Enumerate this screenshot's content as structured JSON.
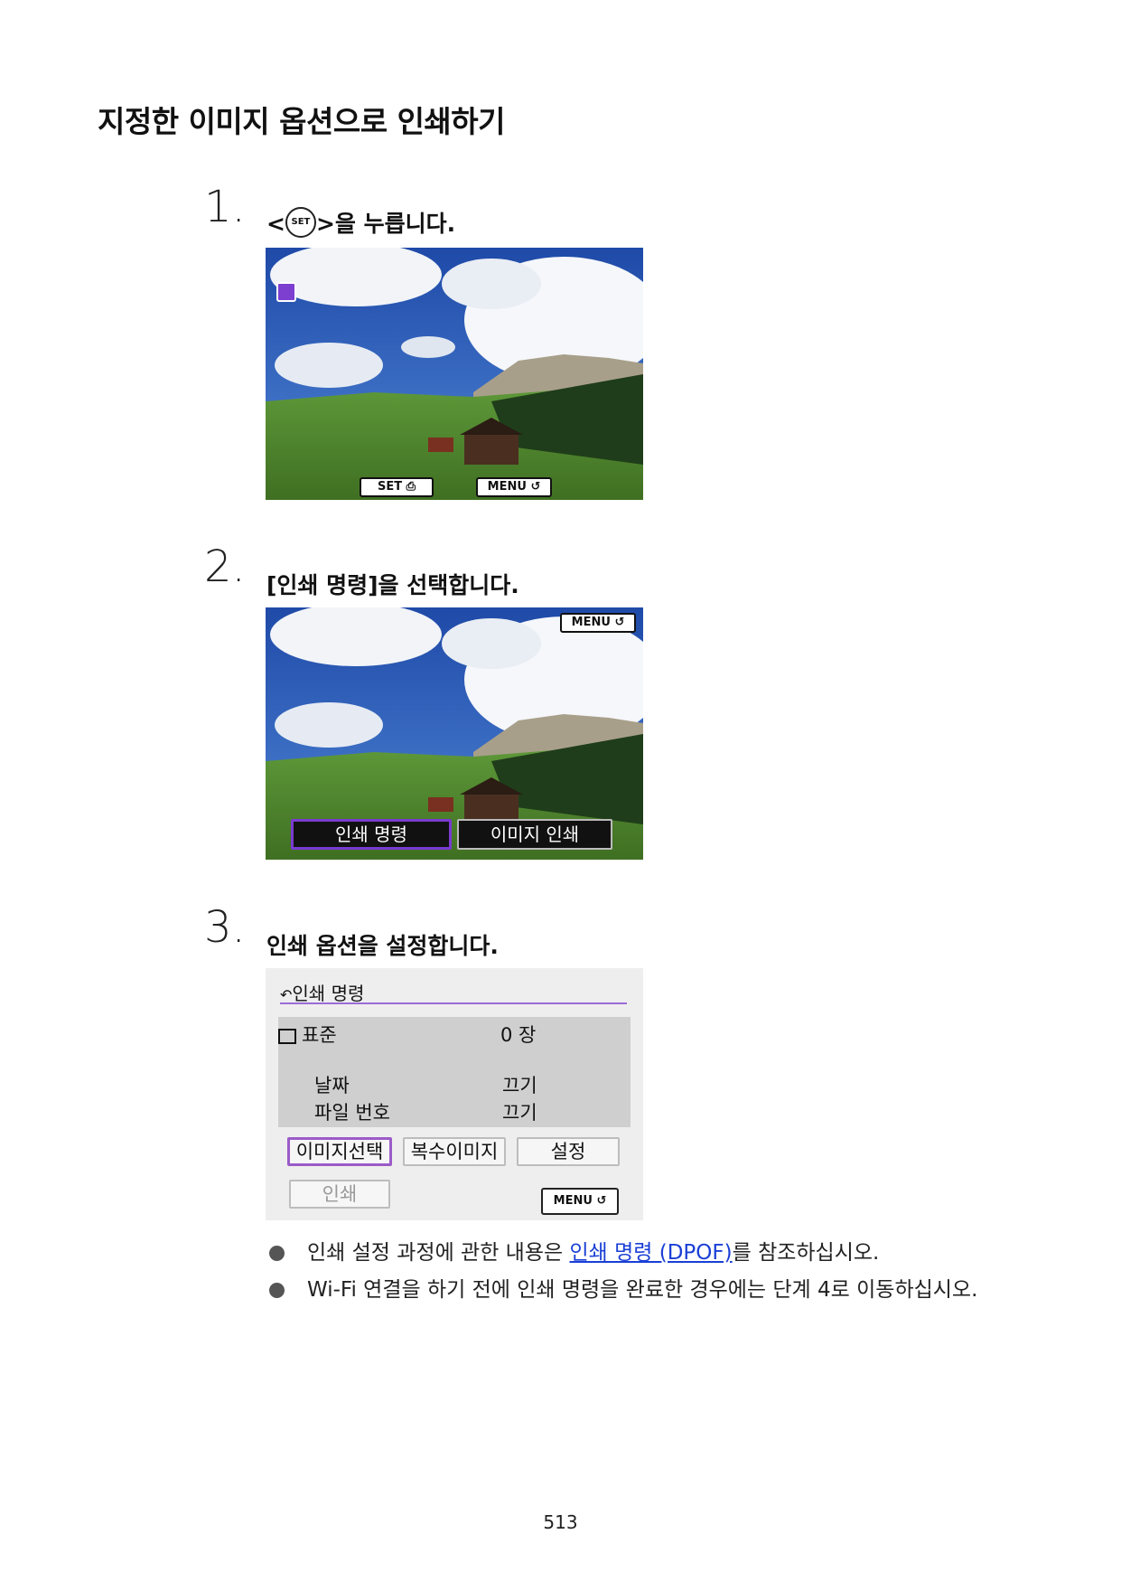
{
  "title": "지정한 이미지 옵션으로 인쇄하기",
  "steps": [
    {
      "num": "1.",
      "text_prefix": "<",
      "set_label": "SET",
      "text_suffix": ">을 누릅니다."
    },
    {
      "num": "2.",
      "text": "[인쇄 명령]을 선택합니다."
    },
    {
      "num": "3.",
      "text": "인쇄 옵션을 설정합니다."
    }
  ],
  "screen1": {
    "set_label": "SET",
    "menu_label": "MENU",
    "icons": [
      "print-order-icon",
      "return-icon"
    ]
  },
  "screen2": {
    "menu_label": "MENU",
    "buttons": [
      "인쇄 명령",
      "이미지 인쇄"
    ],
    "selected": "인쇄 명령"
  },
  "screen3": {
    "title": "인쇄 명령",
    "rows": [
      {
        "label": "표준",
        "value": "0 장"
      },
      {
        "label": "날짜",
        "value": "끄기"
      },
      {
        "label": "파일 번호",
        "value": "끄기"
      }
    ],
    "buttons": [
      "이미지선택",
      "복수이미지",
      "설정"
    ],
    "print_button": "인쇄",
    "menu_label": "MENU",
    "selected": "이미지선택"
  },
  "bullets": [
    {
      "before": "인쇄 설정 과정에 관한 내용은 ",
      "link": "인쇄 명령 (DPOF)",
      "after": "를 참조하십시오."
    },
    {
      "text": "Wi-Fi 연결을 하기 전에 인쇄 명령을 완료한 경우에는 단계 4로 이동하십시오."
    }
  ],
  "page_number": "513",
  "colors": {
    "link": "#1a3fd6",
    "selection": "#7a3ad1",
    "sky": "#2a56b8"
  }
}
